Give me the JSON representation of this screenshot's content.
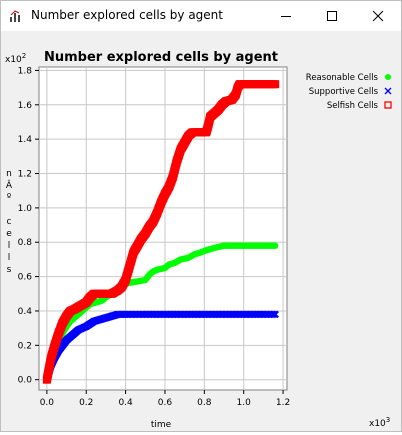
{
  "window": {
    "title": "Number explored cells by agent",
    "controls": {
      "minimize": "minimize-icon",
      "maximize": "maximize-icon",
      "close": "close-icon"
    },
    "app_icon": "chart-app-icon"
  },
  "chart_data": {
    "type": "scatter",
    "title": "Number explored cells by agent",
    "xlabel": "time",
    "ylabel": "nÂº cells",
    "x_multiplier": "x10",
    "x_exponent": "3",
    "y_multiplier": "x10",
    "y_exponent": "2",
    "xlim": [
      -0.04,
      1.22
    ],
    "ylim": [
      -0.06,
      1.82
    ],
    "x_ticks": [
      "0.0",
      "0.2",
      "0.4",
      "0.6",
      "0.8",
      "1.0",
      "1.2"
    ],
    "y_ticks": [
      "0.0",
      "0.2",
      "0.4",
      "0.6",
      "0.8",
      "1.0",
      "1.2",
      "1.4",
      "1.6",
      "1.8"
    ],
    "grid": true,
    "legend_position": "right",
    "series": [
      {
        "name": "Reasonable Cells",
        "color": "#00ff00",
        "marker": "filled-circle",
        "points": [
          [
            0.0,
            0.0
          ],
          [
            0.02,
            0.1
          ],
          [
            0.04,
            0.16
          ],
          [
            0.06,
            0.22
          ],
          [
            0.08,
            0.27
          ],
          [
            0.1,
            0.31
          ],
          [
            0.12,
            0.34
          ],
          [
            0.15,
            0.37
          ],
          [
            0.18,
            0.4
          ],
          [
            0.2,
            0.42
          ],
          [
            0.22,
            0.44
          ],
          [
            0.25,
            0.45
          ],
          [
            0.28,
            0.46
          ],
          [
            0.3,
            0.48
          ],
          [
            0.33,
            0.5
          ],
          [
            0.36,
            0.53
          ],
          [
            0.38,
            0.55
          ],
          [
            0.4,
            0.56
          ],
          [
            0.45,
            0.57
          ],
          [
            0.5,
            0.58
          ],
          [
            0.52,
            0.61
          ],
          [
            0.54,
            0.63
          ],
          [
            0.56,
            0.64
          ],
          [
            0.6,
            0.65
          ],
          [
            0.62,
            0.67
          ],
          [
            0.65,
            0.68
          ],
          [
            0.68,
            0.7
          ],
          [
            0.72,
            0.71
          ],
          [
            0.75,
            0.73
          ],
          [
            0.78,
            0.74
          ],
          [
            0.8,
            0.75
          ],
          [
            0.83,
            0.76
          ],
          [
            0.86,
            0.77
          ],
          [
            0.9,
            0.78
          ],
          [
            1.0,
            0.78
          ],
          [
            1.1,
            0.78
          ],
          [
            1.16,
            0.78
          ]
        ]
      },
      {
        "name": "Supportive Cells",
        "color": "#0000ff",
        "marker": "x",
        "points": [
          [
            0.0,
            0.0
          ],
          [
            0.02,
            0.08
          ],
          [
            0.04,
            0.13
          ],
          [
            0.06,
            0.17
          ],
          [
            0.08,
            0.2
          ],
          [
            0.1,
            0.23
          ],
          [
            0.13,
            0.26
          ],
          [
            0.16,
            0.29
          ],
          [
            0.2,
            0.31
          ],
          [
            0.24,
            0.34
          ],
          [
            0.27,
            0.35
          ],
          [
            0.3,
            0.36
          ],
          [
            0.33,
            0.37
          ],
          [
            0.36,
            0.38
          ],
          [
            0.4,
            0.38
          ],
          [
            0.5,
            0.38
          ],
          [
            0.6,
            0.38
          ],
          [
            0.7,
            0.38
          ],
          [
            0.8,
            0.38
          ],
          [
            0.9,
            0.38
          ],
          [
            1.0,
            0.38
          ],
          [
            1.1,
            0.38
          ],
          [
            1.16,
            0.38
          ]
        ]
      },
      {
        "name": "Selfish Cells",
        "color": "#ff0000",
        "marker": "open-square",
        "points": [
          [
            0.0,
            0.0
          ],
          [
            0.02,
            0.12
          ],
          [
            0.04,
            0.2
          ],
          [
            0.06,
            0.27
          ],
          [
            0.08,
            0.33
          ],
          [
            0.1,
            0.37
          ],
          [
            0.12,
            0.4
          ],
          [
            0.14,
            0.41
          ],
          [
            0.17,
            0.43
          ],
          [
            0.2,
            0.45
          ],
          [
            0.22,
            0.48
          ],
          [
            0.24,
            0.5
          ],
          [
            0.28,
            0.5
          ],
          [
            0.33,
            0.5
          ],
          [
            0.36,
            0.52
          ],
          [
            0.38,
            0.54
          ],
          [
            0.4,
            0.58
          ],
          [
            0.42,
            0.66
          ],
          [
            0.44,
            0.74
          ],
          [
            0.46,
            0.78
          ],
          [
            0.48,
            0.82
          ],
          [
            0.5,
            0.85
          ],
          [
            0.52,
            0.89
          ],
          [
            0.54,
            0.92
          ],
          [
            0.56,
            0.97
          ],
          [
            0.58,
            1.03
          ],
          [
            0.6,
            1.08
          ],
          [
            0.62,
            1.12
          ],
          [
            0.64,
            1.18
          ],
          [
            0.66,
            1.27
          ],
          [
            0.68,
            1.34
          ],
          [
            0.7,
            1.38
          ],
          [
            0.72,
            1.42
          ],
          [
            0.74,
            1.44
          ],
          [
            0.78,
            1.44
          ],
          [
            0.81,
            1.44
          ],
          [
            0.82,
            1.48
          ],
          [
            0.83,
            1.53
          ],
          [
            0.85,
            1.55
          ],
          [
            0.87,
            1.57
          ],
          [
            0.89,
            1.6
          ],
          [
            0.91,
            1.62
          ],
          [
            0.94,
            1.63
          ],
          [
            0.96,
            1.66
          ],
          [
            0.97,
            1.7
          ],
          [
            0.98,
            1.72
          ],
          [
            1.0,
            1.72
          ],
          [
            1.05,
            1.72
          ],
          [
            1.1,
            1.72
          ],
          [
            1.16,
            1.72
          ]
        ]
      }
    ]
  }
}
